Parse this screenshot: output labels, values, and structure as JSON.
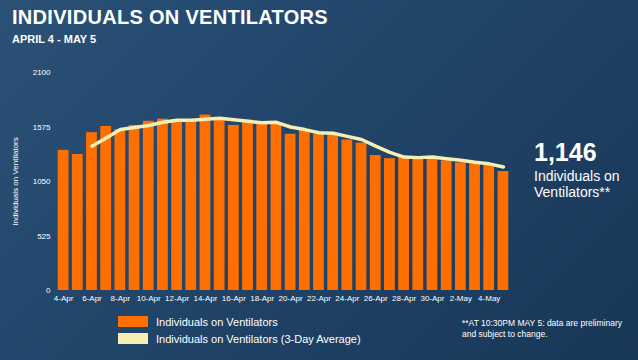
{
  "chart_data": {
    "type": "bar",
    "title": "INDIVIDUALS ON VENTILATORS",
    "subtitle": "APRIL 4 - MAY 5",
    "y_label": "Individuals on Ventilators",
    "categories": [
      "4-Apr",
      null,
      "6-Apr",
      null,
      "8-Apr",
      null,
      "10-Apr",
      null,
      "12-Apr",
      null,
      "14-Apr",
      null,
      "16-Apr",
      null,
      "18-Apr",
      null,
      "20-Apr",
      null,
      "22-Apr",
      null,
      "24-Apr",
      null,
      "26-Apr",
      null,
      "28-Apr",
      null,
      "30-Apr",
      null,
      "2-May",
      null,
      "4-May",
      null
    ],
    "series": [
      {
        "name": "Individuals on Ventilators",
        "type": "bar",
        "color": "#ff6f00",
        "values": [
          1350,
          1310,
          1520,
          1580,
          1550,
          1590,
          1630,
          1650,
          1640,
          1630,
          1690,
          1660,
          1590,
          1640,
          1610,
          1605,
          1505,
          1545,
          1505,
          1495,
          1450,
          1420,
          1300,
          1270,
          1290,
          1280,
          1280,
          1250,
          1230,
          1220,
          1210,
          1146
        ]
      },
      {
        "name": "Individuals on Ventilators (3-Day Average)",
        "type": "line",
        "color": "#f5efb4",
        "values": [
          null,
          null,
          1390,
          1470,
          1550,
          1570,
          1590,
          1620,
          1640,
          1640,
          1650,
          1660,
          1645,
          1630,
          1615,
          1620,
          1575,
          1550,
          1520,
          1515,
          1485,
          1455,
          1390,
          1330,
          1285,
          1280,
          1285,
          1270,
          1255,
          1235,
          1220,
          1190
        ]
      }
    ],
    "ylim": [
      0,
      2100
    ],
    "yticks": [
      0,
      525,
      1050,
      1575,
      2100
    ],
    "grid": false,
    "legend": "bottom-left",
    "annotations": [
      "1,146",
      "Individuals on Ventilators**"
    ],
    "footnote": "**AT 10:30PM MAY 5: data are preliminary and subject to change."
  }
}
